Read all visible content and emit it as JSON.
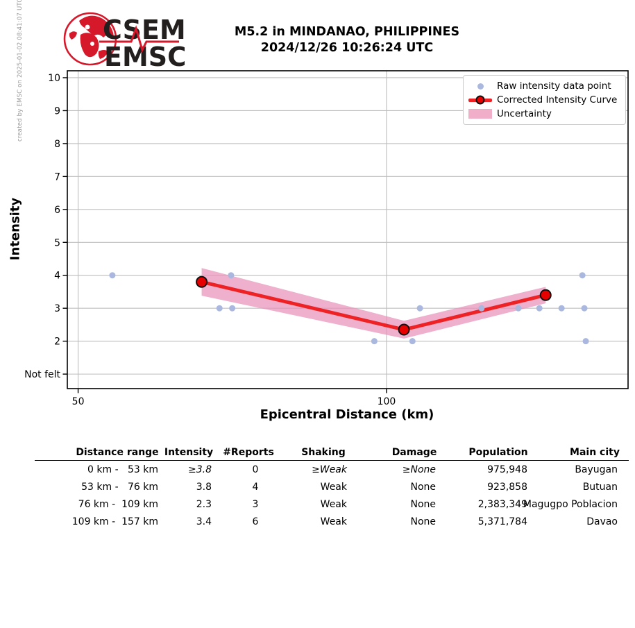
{
  "header": {
    "title_line1": "M5.2 in MINDANAO, PHILIPPINES",
    "title_line2": "2024/12/26 10:26:24 UTC"
  },
  "logo": {
    "line1": "CSEM",
    "line2": "EMSC"
  },
  "watermark": "created by EMSC on 2025-01-02 08:41:07 UTC",
  "chart_data": {
    "type": "line",
    "title": "M5.2 in MINDANAO, PHILIPPINES",
    "subtitle": "2024/12/26 10:26:24 UTC",
    "xlabel": "Epicentral Distance (km)",
    "ylabel": "Intensity",
    "x_scale": "log",
    "xlim": [
      48.8,
      172.1
    ],
    "ylim": [
      0.56,
      10.21
    ],
    "grid": true,
    "x_ticks": [
      {
        "value": 50,
        "label": "50"
      },
      {
        "value": 100,
        "label": "100"
      }
    ],
    "y_ticks": [
      {
        "value": 1,
        "label": "Not felt"
      },
      {
        "value": 2,
        "label": "2"
      },
      {
        "value": 3,
        "label": "3"
      },
      {
        "value": 4,
        "label": "4"
      },
      {
        "value": 5,
        "label": "5"
      },
      {
        "value": 6,
        "label": "6"
      },
      {
        "value": 7,
        "label": "7"
      },
      {
        "value": 8,
        "label": "8"
      },
      {
        "value": 9,
        "label": "9"
      },
      {
        "value": 10,
        "label": "10"
      }
    ],
    "raw_points": [
      {
        "km": 54.0,
        "intensity": 4
      },
      {
        "km": 70.5,
        "intensity": 4
      },
      {
        "km": 68.7,
        "intensity": 3
      },
      {
        "km": 70.7,
        "intensity": 3
      },
      {
        "km": 97.3,
        "intensity": 2
      },
      {
        "km": 106.0,
        "intensity": 2
      },
      {
        "km": 107.8,
        "intensity": 3
      },
      {
        "km": 123.8,
        "intensity": 3
      },
      {
        "km": 134.5,
        "intensity": 3
      },
      {
        "km": 141.0,
        "intensity": 3
      },
      {
        "km": 148.2,
        "intensity": 3
      },
      {
        "km": 156.0,
        "intensity": 3
      },
      {
        "km": 155.3,
        "intensity": 4
      },
      {
        "km": 156.5,
        "intensity": 2
      }
    ],
    "curve": [
      {
        "km": 66,
        "intensity": 3.8,
        "uncertainty": 0.42
      },
      {
        "km": 104,
        "intensity": 2.35,
        "uncertainty": 0.27
      },
      {
        "km": 143,
        "intensity": 3.4,
        "uncertainty": 0.25
      }
    ],
    "legend": {
      "position": "upper right",
      "entries": [
        {
          "label": "Raw intensity data point",
          "type": "point"
        },
        {
          "label": "Corrected Intensity Curve",
          "type": "line"
        },
        {
          "label": "Uncertainty",
          "type": "band"
        }
      ]
    },
    "colors": {
      "raw_point": "#aab8e0",
      "curve": "#ee2125",
      "curve_marker": "#e60000",
      "band": "#e891b8",
      "grid": "#bdbdbd",
      "axis": "#000000",
      "logo_red": "#d6182b",
      "logo_text": "#231f1f"
    }
  },
  "table": {
    "columns": [
      "Distance range",
      "Intensity",
      "#Reports",
      "Shaking",
      "Damage",
      "Population",
      "Main city"
    ],
    "rows": [
      {
        "cells": [
          "0 km -   53 km",
          "≥3.8",
          "0",
          "≥Weak",
          "≥None",
          "975,948",
          "Bayugan"
        ],
        "italic_cols": [
          1,
          3,
          4
        ]
      },
      {
        "cells": [
          "53 km -   76 km",
          "3.8",
          "4",
          "Weak",
          "None",
          "923,858",
          "Butuan"
        ],
        "italic_cols": []
      },
      {
        "cells": [
          "76 km -  109 km",
          "2.3",
          "3",
          "Weak",
          "None",
          "2,383,349",
          "Magugpo Poblacion"
        ],
        "italic_cols": []
      },
      {
        "cells": [
          "109 km -  157 km",
          "3.4",
          "6",
          "Weak",
          "None",
          "5,371,784",
          "Davao"
        ],
        "italic_cols": []
      }
    ]
  }
}
